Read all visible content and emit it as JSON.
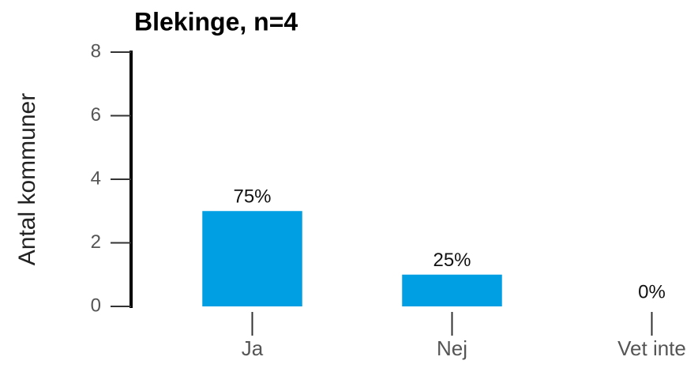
{
  "chart_data": {
    "type": "bar",
    "title": "Blekinge, n=4",
    "ylabel": "Antal kommuner",
    "categories": [
      "Ja",
      "Nej",
      "Vet inte"
    ],
    "values": [
      3,
      1,
      0
    ],
    "value_labels": [
      "75%",
      "25%",
      "0%"
    ],
    "color": "#009fe3",
    "ylim": [
      0,
      8
    ],
    "yticks": [
      0,
      2,
      4,
      6,
      8
    ]
  }
}
